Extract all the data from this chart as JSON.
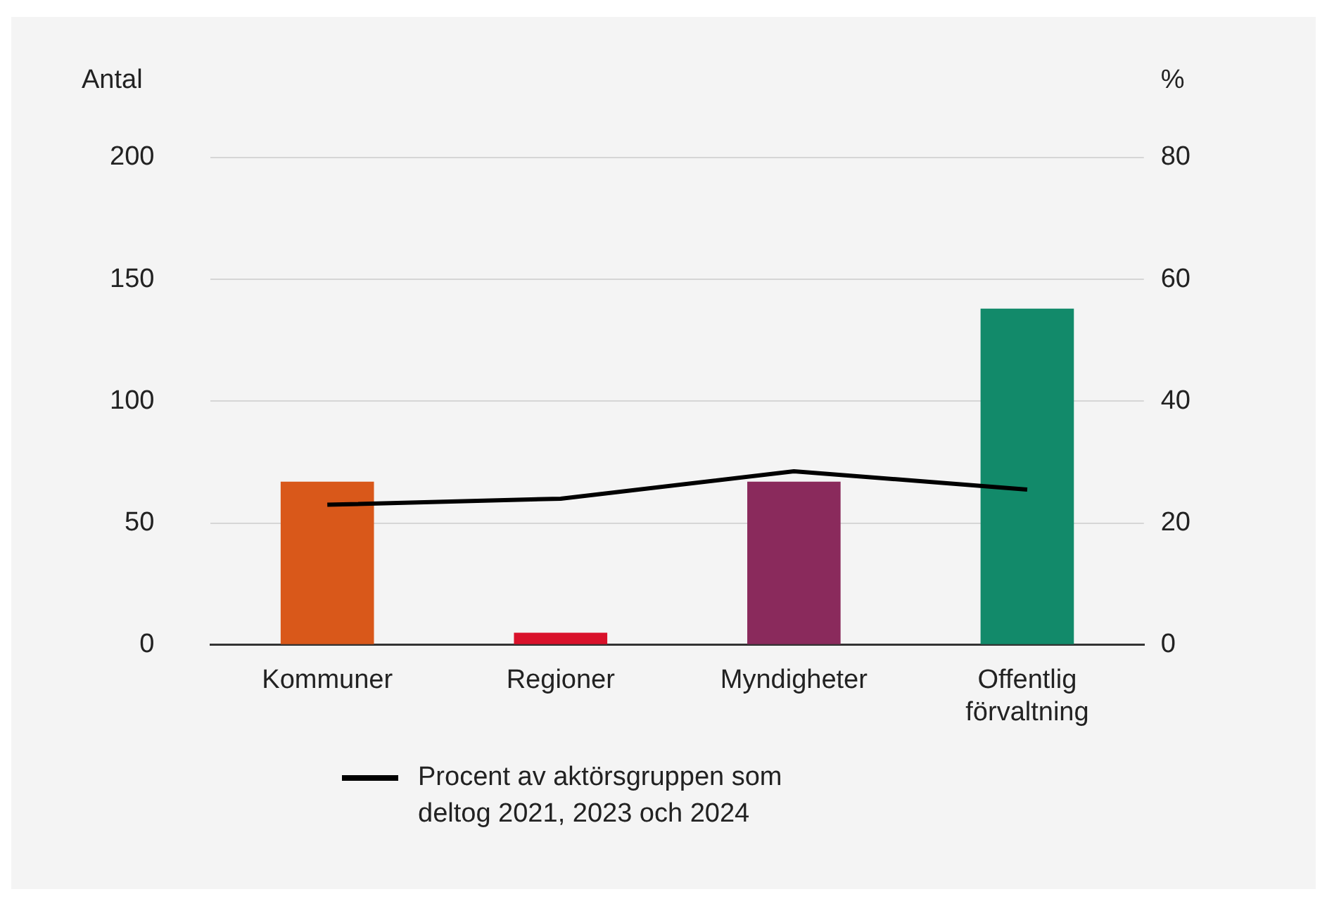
{
  "chart_data": {
    "type": "bar",
    "ylabel": "Antal",
    "y2label": "%",
    "categories": [
      "Kommuner",
      "Regioner",
      "Myndigheter",
      "Offentlig förvaltning"
    ],
    "series": [
      {
        "colors": [
          "#d9581a",
          "#d9112a",
          "#8a2a5c",
          "#128a6a"
        ],
        "values": [
          67,
          5,
          67,
          138
        ]
      },
      {
        "type": "line",
        "name": "Procent av aktörsgruppen som deltog 2021, 2023 och 2024",
        "color": "#000000",
        "axis": "y2",
        "values": [
          23,
          24,
          28.5,
          25.5
        ]
      }
    ],
    "ylim": [
      0,
      200
    ],
    "yticks": [
      0,
      50,
      100,
      150,
      200
    ],
    "y2lim": [
      0,
      80
    ],
    "y2ticks": [
      0,
      20,
      40,
      60,
      80
    ],
    "grid": "y",
    "legend": "bottom",
    "marker": "none"
  }
}
